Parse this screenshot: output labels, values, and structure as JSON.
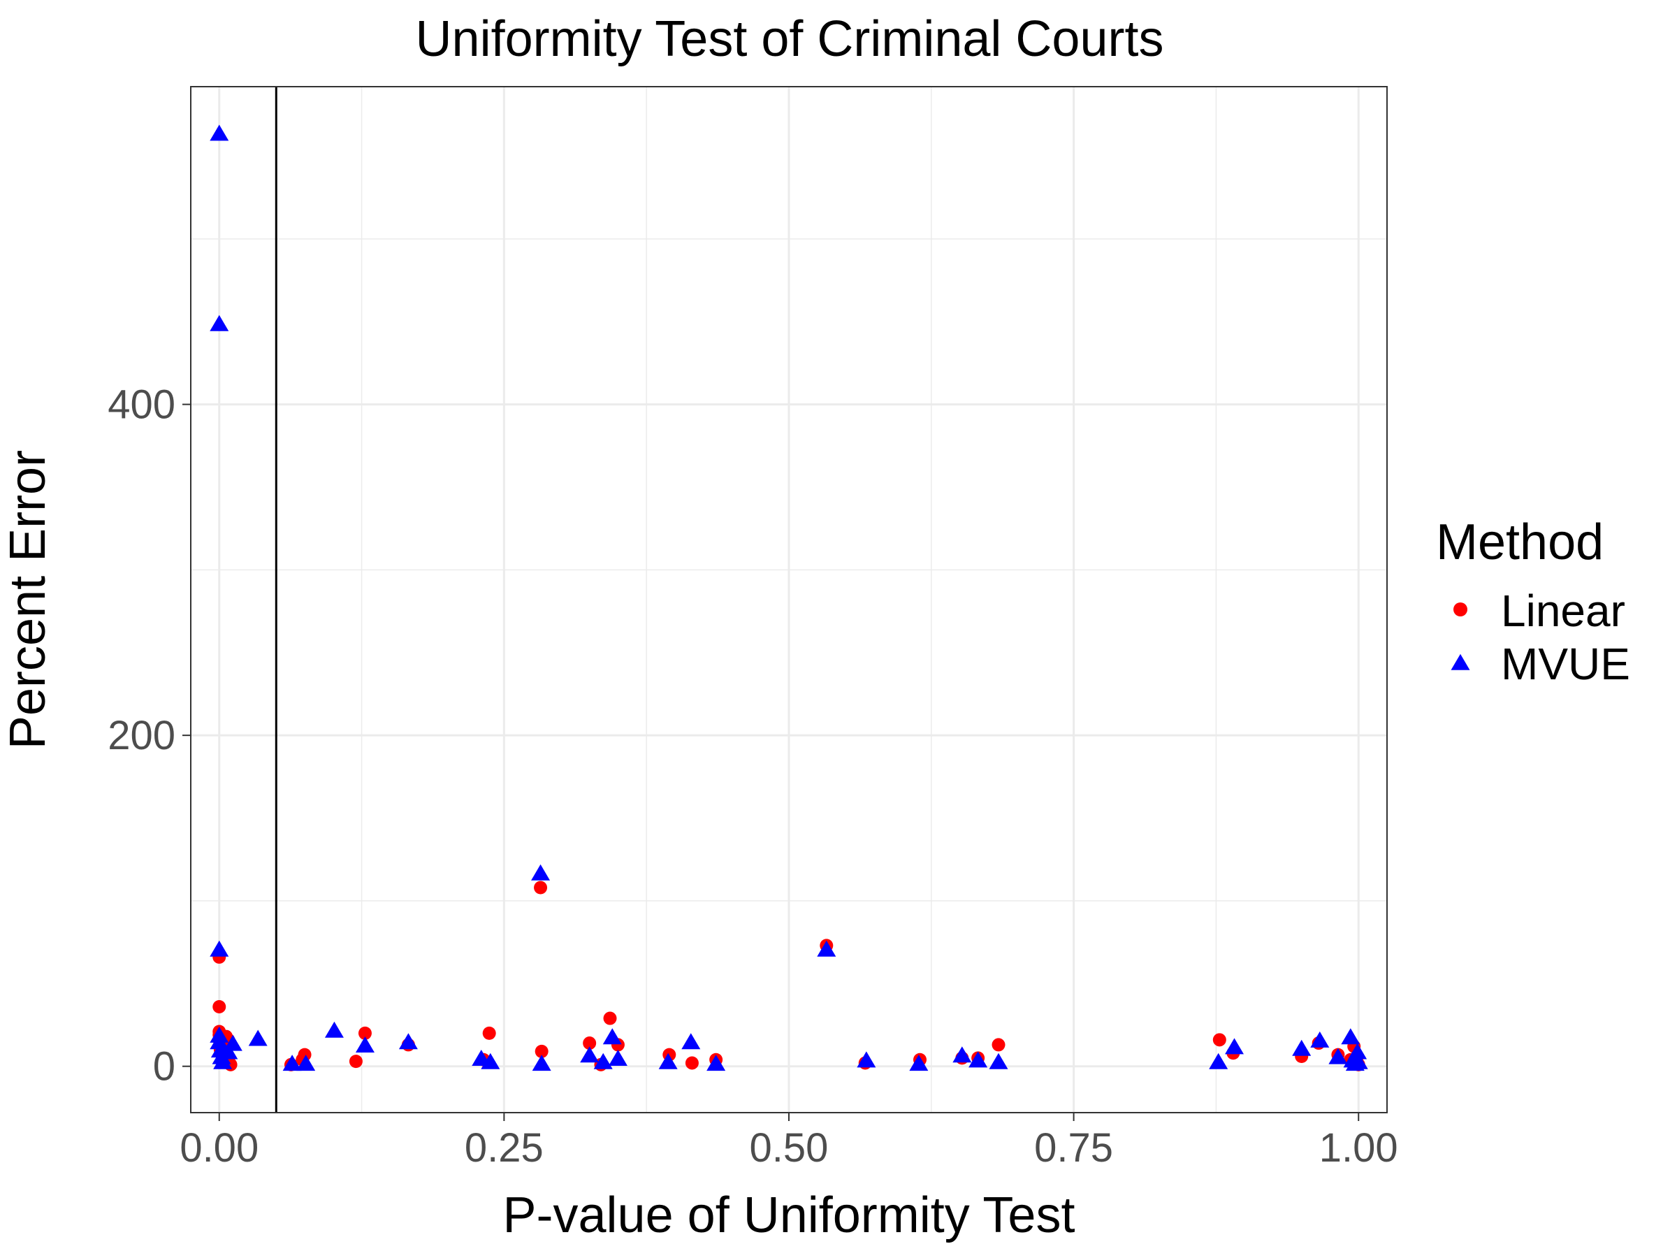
{
  "chart_data": {
    "type": "scatter",
    "title": "Uniformity Test of Criminal Courts",
    "xlabel": "P-value of Uniformity Test",
    "ylabel": "Percent Error",
    "xlim": [
      -0.025,
      1.025
    ],
    "ylim": [
      -28,
      592
    ],
    "xticks": [
      0.0,
      0.25,
      0.5,
      0.75,
      1.0
    ],
    "xtick_labels": [
      "0.00",
      "0.25",
      "0.50",
      "0.75",
      "1.00"
    ],
    "yticks": [
      0,
      200,
      400
    ],
    "ytick_labels": [
      "0",
      "200",
      "400"
    ],
    "grid": true,
    "reference_line_x": 0.05,
    "legend": {
      "title": "Method",
      "position": "right"
    },
    "series": [
      {
        "name": "Linear",
        "color": "#ff0000",
        "marker": "circle",
        "points": [
          [
            0.0,
            66
          ],
          [
            0.0,
            36
          ],
          [
            0.0,
            21
          ],
          [
            0.0,
            19
          ],
          [
            0.0,
            16
          ],
          [
            0.001,
            13
          ],
          [
            0.001,
            10
          ],
          [
            0.002,
            8
          ],
          [
            0.003,
            5
          ],
          [
            0.004,
            3
          ],
          [
            0.006,
            18
          ],
          [
            0.008,
            16
          ],
          [
            0.009,
            2
          ],
          [
            0.01,
            1
          ],
          [
            0.063,
            1
          ],
          [
            0.073,
            4
          ],
          [
            0.075,
            7
          ],
          [
            0.12,
            3
          ],
          [
            0.128,
            20
          ],
          [
            0.166,
            13
          ],
          [
            0.232,
            4
          ],
          [
            0.237,
            20
          ],
          [
            0.282,
            108
          ],
          [
            0.283,
            9
          ],
          [
            0.325,
            14
          ],
          [
            0.335,
            1
          ],
          [
            0.343,
            29
          ],
          [
            0.35,
            13
          ],
          [
            0.395,
            7
          ],
          [
            0.415,
            2
          ],
          [
            0.436,
            4
          ],
          [
            0.533,
            73
          ],
          [
            0.567,
            2
          ],
          [
            0.615,
            4
          ],
          [
            0.652,
            5
          ],
          [
            0.666,
            5
          ],
          [
            0.684,
            13
          ],
          [
            0.878,
            16
          ],
          [
            0.89,
            8
          ],
          [
            0.95,
            6
          ],
          [
            0.965,
            14
          ],
          [
            0.982,
            7
          ],
          [
            0.993,
            4
          ],
          [
            0.996,
            12
          ],
          [
            0.998,
            2
          ],
          [
            0.999,
            6
          ],
          [
            1.0,
            1
          ]
        ]
      },
      {
        "name": "MVUE",
        "color": "#0000ff",
        "marker": "triangle",
        "points": [
          [
            0.0,
            563
          ],
          [
            0.0,
            448
          ],
          [
            0.0,
            70
          ],
          [
            0.0,
            18
          ],
          [
            0.0,
            14
          ],
          [
            0.001,
            9
          ],
          [
            0.002,
            5
          ],
          [
            0.003,
            2
          ],
          [
            0.008,
            8
          ],
          [
            0.012,
            13
          ],
          [
            0.034,
            16
          ],
          [
            0.064,
            1
          ],
          [
            0.076,
            1
          ],
          [
            0.101,
            21
          ],
          [
            0.128,
            12
          ],
          [
            0.166,
            14
          ],
          [
            0.23,
            4
          ],
          [
            0.238,
            2
          ],
          [
            0.282,
            116
          ],
          [
            0.283,
            1
          ],
          [
            0.325,
            6
          ],
          [
            0.337,
            2
          ],
          [
            0.345,
            17
          ],
          [
            0.35,
            4
          ],
          [
            0.394,
            2
          ],
          [
            0.414,
            14
          ],
          [
            0.436,
            1
          ],
          [
            0.533,
            70
          ],
          [
            0.568,
            3
          ],
          [
            0.614,
            1
          ],
          [
            0.652,
            6
          ],
          [
            0.666,
            3
          ],
          [
            0.684,
            2
          ],
          [
            0.877,
            2
          ],
          [
            0.891,
            11
          ],
          [
            0.95,
            10
          ],
          [
            0.966,
            15
          ],
          [
            0.982,
            5
          ],
          [
            0.993,
            17
          ],
          [
            0.995,
            3
          ],
          [
            0.997,
            1
          ],
          [
            0.999,
            8
          ],
          [
            1.0,
            2
          ]
        ]
      }
    ]
  }
}
